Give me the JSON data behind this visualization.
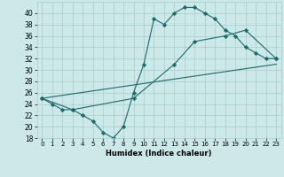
{
  "xlabel": "Humidex (Indice chaleur)",
  "bg_color": "#cce8e8",
  "grid_color": "#aacccc",
  "line_color": "#1a6b6b",
  "xlim": [
    -0.5,
    23.5
  ],
  "ylim": [
    18,
    42
  ],
  "yticks": [
    18,
    20,
    22,
    24,
    26,
    28,
    30,
    32,
    34,
    36,
    38,
    40
  ],
  "xticks": [
    0,
    1,
    2,
    3,
    4,
    5,
    6,
    7,
    8,
    9,
    10,
    11,
    12,
    13,
    14,
    15,
    16,
    17,
    18,
    19,
    20,
    21,
    22,
    23
  ],
  "line1_x": [
    0,
    1,
    2,
    3,
    4,
    5,
    6,
    7,
    8,
    9,
    10,
    11,
    12,
    13,
    14,
    15,
    16,
    17,
    18,
    19,
    20,
    21,
    22,
    23
  ],
  "line1_y": [
    25,
    24,
    23,
    23,
    22,
    21,
    19,
    18,
    20,
    26,
    31,
    39,
    38,
    40,
    41,
    41,
    40,
    39,
    37,
    36,
    34,
    33,
    32,
    32
  ],
  "line2_x": [
    0,
    3,
    9,
    13,
    15,
    18,
    20,
    23
  ],
  "line2_y": [
    25,
    23,
    25,
    31,
    35,
    36,
    37,
    32
  ],
  "line3_x": [
    0,
    23
  ],
  "line3_y": [
    25,
    31
  ],
  "xlabel_fontsize": 6,
  "tick_fontsize": 5,
  "ytick_fontsize": 5.5
}
